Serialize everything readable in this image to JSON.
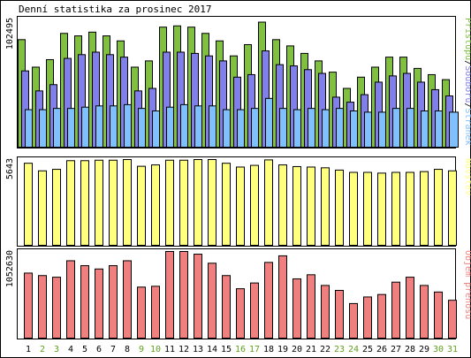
{
  "chart_data": [
    {
      "type": "bar",
      "title": "Denní statistika za prosinec 2017",
      "legend_placement": "right",
      "legend": [
        {
          "name": "Stránek",
          "color": "#80c0ff"
        },
        {
          "name": "Souborů",
          "color": "#8080e8"
        },
        {
          "name": "Přístupů",
          "color": "#80c040"
        }
      ],
      "ylabel": "102495",
      "ylim": [
        0,
        102495
      ],
      "categories": [
        "1",
        "2",
        "3",
        "4",
        "5",
        "6",
        "7",
        "8",
        "9",
        "10",
        "11",
        "12",
        "13",
        "14",
        "15",
        "16",
        "17",
        "18",
        "19",
        "20",
        "21",
        "22",
        "23",
        "24",
        "25",
        "26",
        "27",
        "28",
        "29",
        "30",
        "31"
      ],
      "weekend_days": [
        "2",
        "3",
        "9",
        "10",
        "16",
        "17",
        "23",
        "24",
        "30",
        "31"
      ],
      "series": [
        {
          "name": "Přístupů",
          "color": "#80c040",
          "values": [
            86000,
            64000,
            70000,
            91000,
            89000,
            92000,
            89000,
            85000,
            64000,
            69000,
            96000,
            97000,
            96000,
            91000,
            85000,
            73000,
            82000,
            100000,
            86000,
            81000,
            75000,
            69000,
            60000,
            47000,
            56000,
            64000,
            72000,
            72000,
            63000,
            58000,
            54000
          ]
        },
        {
          "name": "Souborů",
          "color": "#8080e8",
          "values": [
            61000,
            45000,
            50000,
            71000,
            74000,
            76000,
            74000,
            72000,
            45000,
            47000,
            76000,
            76000,
            75000,
            73000,
            69000,
            56000,
            58000,
            77000,
            66000,
            65000,
            62000,
            59000,
            40000,
            36000,
            42000,
            52000,
            57000,
            59000,
            52000,
            46000,
            41000
          ]
        },
        {
          "name": "Stránek",
          "color": "#80c0ff",
          "values": [
            30000,
            30000,
            31000,
            31000,
            32000,
            33000,
            33000,
            34000,
            31000,
            29000,
            32000,
            34000,
            33000,
            33000,
            30000,
            30000,
            31000,
            39000,
            31000,
            30000,
            31000,
            30000,
            31000,
            29000,
            28000,
            28000,
            31000,
            31000,
            29000,
            29000,
            28000
          ]
        }
      ]
    },
    {
      "type": "bar",
      "legend": [
        {
          "name": "Návštěv",
          "color": "#ffff80"
        }
      ],
      "ylabel": "5643",
      "ylim": [
        0,
        5643
      ],
      "categories": [
        "1",
        "2",
        "3",
        "4",
        "5",
        "6",
        "7",
        "8",
        "9",
        "10",
        "11",
        "12",
        "13",
        "14",
        "15",
        "16",
        "17",
        "18",
        "19",
        "20",
        "21",
        "22",
        "23",
        "24",
        "25",
        "26",
        "27",
        "28",
        "29",
        "30",
        "31"
      ],
      "series": [
        {
          "name": "Návštěv",
          "color": "#ffff80",
          "values": [
            5400,
            4900,
            5000,
            5570,
            5570,
            5600,
            5600,
            5643,
            5200,
            5290,
            5600,
            5600,
            5643,
            5643,
            5400,
            5150,
            5260,
            5620,
            5290,
            5180,
            5150,
            5100,
            4950,
            4800,
            4800,
            4750,
            4800,
            4800,
            4850,
            5000,
            4900
          ]
        }
      ]
    },
    {
      "type": "bar",
      "legend": [
        {
          "name": "Objem přenosu",
          "color": "#f08080"
        }
      ],
      "ylabel": "1052630",
      "ylim": [
        0,
        1052630
      ],
      "categories": [
        "1",
        "2",
        "3",
        "4",
        "5",
        "6",
        "7",
        "8",
        "9",
        "10",
        "11",
        "12",
        "13",
        "14",
        "15",
        "16",
        "17",
        "18",
        "19",
        "20",
        "21",
        "22",
        "23",
        "24",
        "25",
        "26",
        "27",
        "28",
        "29",
        "30",
        "31"
      ],
      "series": [
        {
          "name": "Objem přenosu",
          "color": "#f08080",
          "values": [
            790000,
            760000,
            740000,
            940000,
            880000,
            840000,
            880000,
            940000,
            620000,
            630000,
            1052630,
            1052630,
            1020000,
            910000,
            760000,
            600000,
            670000,
            920000,
            1000000,
            720000,
            770000,
            640000,
            580000,
            420000,
            500000,
            530000,
            680000,
            740000,
            640000,
            560000,
            460000
          ]
        }
      ]
    }
  ]
}
